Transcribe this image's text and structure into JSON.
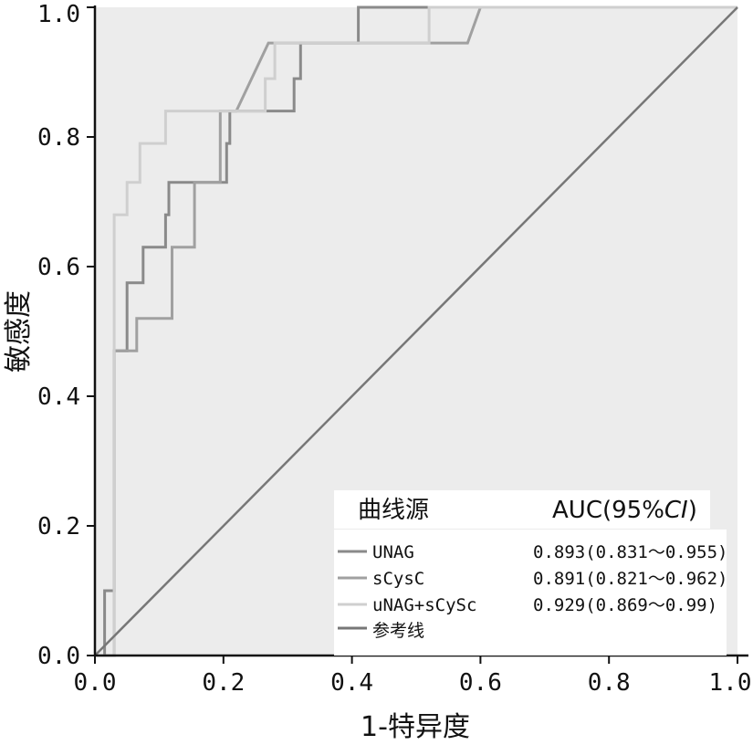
{
  "chart_data": {
    "type": "line",
    "xlabel": "1-特异度",
    "ylabel": "敏感度",
    "xlim": [
      0,
      1
    ],
    "ylim": [
      0,
      1
    ],
    "x_ticks": [
      "0.0",
      "0.2",
      "0.4",
      "0.6",
      "0.8",
      "1.0"
    ],
    "y_ticks": [
      "0.0",
      "0.2",
      "0.4",
      "0.6",
      "0.8",
      "1.0"
    ],
    "grid": false,
    "legend_position": "bottom-right",
    "legend": {
      "header_source": "曲线源",
      "header_auc": "AUC(95%",
      "header_ci": "CI",
      "header_close": ")"
    },
    "series": [
      {
        "name": "UNAG",
        "auc_label": "0.893(0.831～0.955)",
        "color": "#8a8a8a",
        "points": [
          [
            0.0,
            0.0
          ],
          [
            0.015,
            0.0
          ],
          [
            0.015,
            0.1
          ],
          [
            0.03,
            0.1
          ],
          [
            0.03,
            0.47
          ],
          [
            0.05,
            0.47
          ],
          [
            0.05,
            0.575
          ],
          [
            0.075,
            0.575
          ],
          [
            0.075,
            0.63
          ],
          [
            0.11,
            0.63
          ],
          [
            0.11,
            0.68
          ],
          [
            0.115,
            0.68
          ],
          [
            0.115,
            0.73
          ],
          [
            0.205,
            0.73
          ],
          [
            0.205,
            0.79
          ],
          [
            0.21,
            0.79
          ],
          [
            0.21,
            0.84
          ],
          [
            0.31,
            0.84
          ],
          [
            0.31,
            0.89
          ],
          [
            0.32,
            0.89
          ],
          [
            0.32,
            0.945
          ],
          [
            0.41,
            0.945
          ],
          [
            0.41,
            1.0
          ],
          [
            1.0,
            1.0
          ]
        ]
      },
      {
        "name": "sCysC",
        "auc_label": "0.891(0.821～0.962)",
        "color": "#a0a0a0",
        "points": [
          [
            0.0,
            0.0
          ],
          [
            0.03,
            0.0
          ],
          [
            0.03,
            0.47
          ],
          [
            0.065,
            0.47
          ],
          [
            0.065,
            0.52
          ],
          [
            0.12,
            0.52
          ],
          [
            0.12,
            0.63
          ],
          [
            0.155,
            0.63
          ],
          [
            0.155,
            0.73
          ],
          [
            0.195,
            0.73
          ],
          [
            0.195,
            0.84
          ],
          [
            0.22,
            0.84
          ],
          [
            0.27,
            0.945
          ],
          [
            0.58,
            0.945
          ],
          [
            0.6,
            1.0
          ],
          [
            1.0,
            1.0
          ]
        ]
      },
      {
        "name": "uNAG+sCySc",
        "auc_label": "0.929(0.869～0.99)",
        "color": "#cfcfcf",
        "points": [
          [
            0.0,
            0.0
          ],
          [
            0.03,
            0.0
          ],
          [
            0.03,
            0.68
          ],
          [
            0.05,
            0.68
          ],
          [
            0.05,
            0.73
          ],
          [
            0.07,
            0.73
          ],
          [
            0.07,
            0.79
          ],
          [
            0.11,
            0.79
          ],
          [
            0.11,
            0.84
          ],
          [
            0.265,
            0.84
          ],
          [
            0.265,
            0.89
          ],
          [
            0.28,
            0.89
          ],
          [
            0.28,
            0.945
          ],
          [
            0.52,
            0.945
          ],
          [
            0.52,
            1.0
          ],
          [
            1.0,
            1.0
          ]
        ]
      },
      {
        "name": "参考线",
        "color": "#777777",
        "points": [
          [
            0,
            0
          ],
          [
            1,
            1
          ]
        ]
      }
    ]
  }
}
